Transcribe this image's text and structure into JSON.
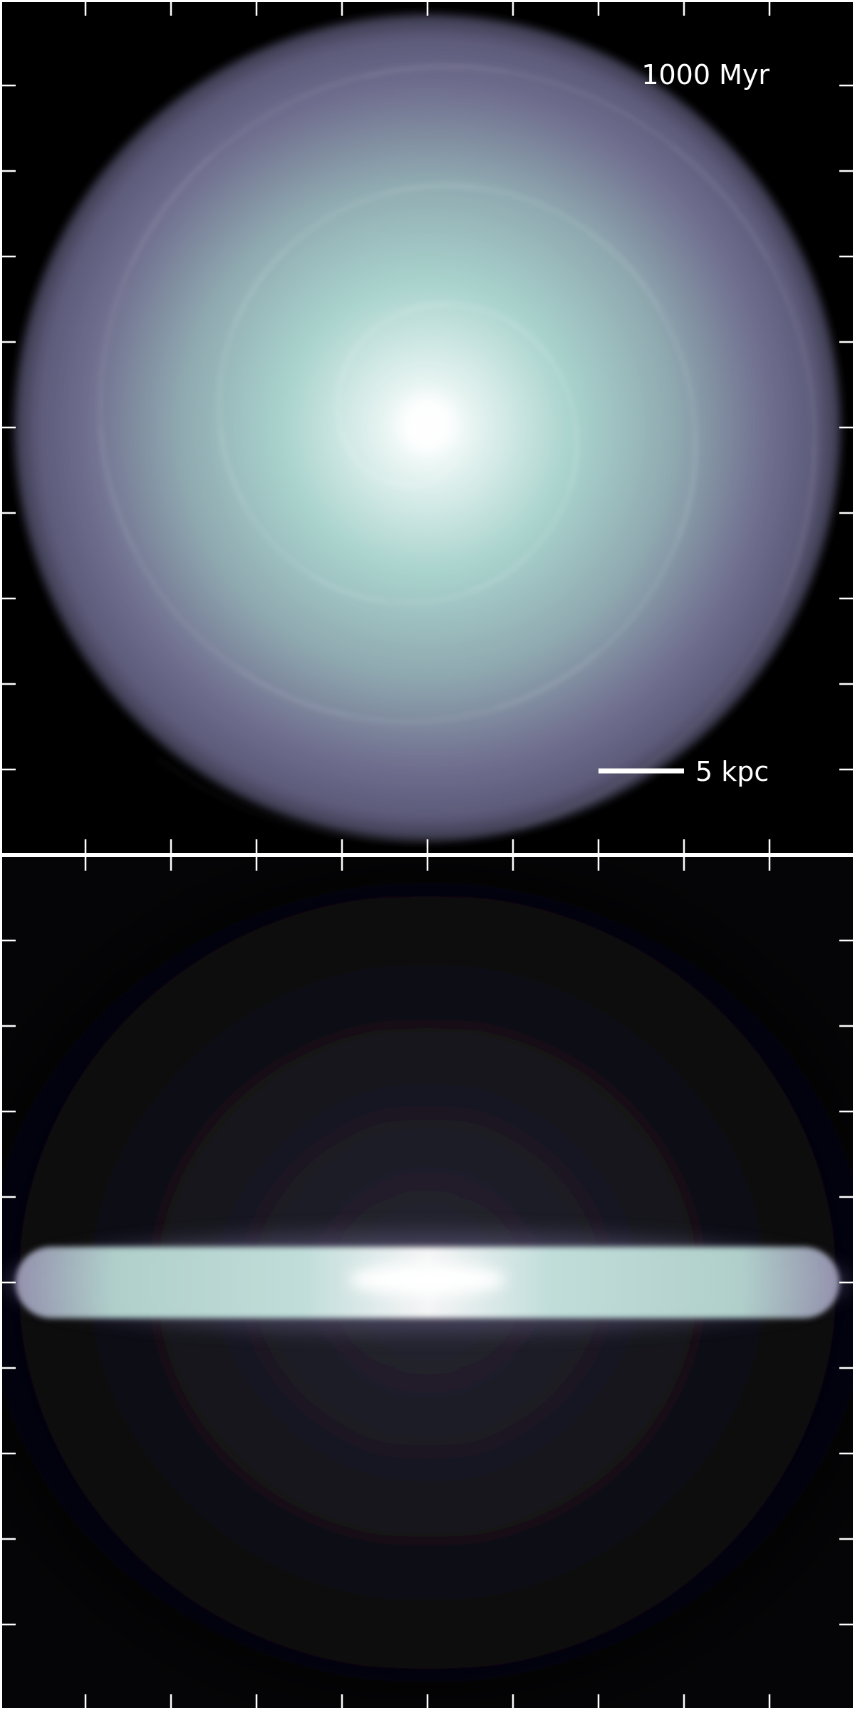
{
  "figure": {
    "time_label": "1000 Myr",
    "scale_bar_label": "5 kpc"
  },
  "colors": {
    "background": "#000000",
    "frame": "#ffffff",
    "disk_core": "#ffffff",
    "disk_mid": "#b8dbd6",
    "disk_edge": "#6d6c8c",
    "halo": "#1c1b24"
  },
  "panels": [
    {
      "id": "face-on",
      "view": "face-on"
    },
    {
      "id": "edge-on",
      "view": "edge-on"
    }
  ]
}
